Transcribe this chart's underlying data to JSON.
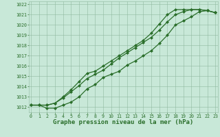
{
  "title": "Graphe pression niveau de la mer (hPa)",
  "x_values": [
    0,
    1,
    2,
    3,
    4,
    5,
    6,
    7,
    8,
    9,
    10,
    11,
    12,
    13,
    14,
    15,
    16,
    17,
    18,
    19,
    20,
    21,
    22,
    23
  ],
  "line1": [
    1012.2,
    1012.2,
    1011.9,
    1011.9,
    1012.2,
    1012.5,
    1013.0,
    1013.8,
    1014.2,
    1014.9,
    1015.2,
    1015.5,
    1016.1,
    1016.5,
    1017.0,
    1017.5,
    1018.2,
    1019.0,
    1020.0,
    1020.4,
    1020.8,
    1021.3,
    1021.4,
    1021.2
  ],
  "line2": [
    1012.2,
    1012.2,
    1012.2,
    1012.4,
    1012.9,
    1013.5,
    1014.1,
    1014.8,
    1015.2,
    1015.6,
    1016.2,
    1016.8,
    1017.3,
    1017.8,
    1018.3,
    1018.8,
    1019.5,
    1020.3,
    1021.0,
    1021.3,
    1021.5,
    1021.5,
    1021.4,
    1021.2
  ],
  "line3": [
    1012.2,
    1012.2,
    1012.2,
    1012.4,
    1013.0,
    1013.7,
    1014.5,
    1015.3,
    1015.5,
    1016.0,
    1016.5,
    1017.0,
    1017.5,
    1018.0,
    1018.5,
    1019.2,
    1020.1,
    1021.0,
    1021.5,
    1021.5,
    1021.5,
    1021.5,
    1021.4,
    1021.2
  ],
  "line_color": "#2a6e2a",
  "bg_color": "#c8e8d8",
  "grid_color": "#90b8a0",
  "ylim": [
    1011.5,
    1022.3
  ],
  "xlim": [
    -0.3,
    23.3
  ],
  "yticks": [
    1012,
    1013,
    1014,
    1015,
    1016,
    1017,
    1018,
    1019,
    1020,
    1021,
    1022
  ],
  "xticks": [
    0,
    1,
    2,
    3,
    4,
    5,
    6,
    7,
    8,
    9,
    10,
    11,
    12,
    13,
    14,
    15,
    16,
    17,
    18,
    19,
    20,
    21,
    22,
    23
  ],
  "marker": "D",
  "marker_size": 2.0,
  "line_width": 0.9,
  "title_fontsize": 6.5,
  "tick_fontsize": 4.8,
  "title_color": "#2a6e2a",
  "tick_color": "#2a6e2a"
}
